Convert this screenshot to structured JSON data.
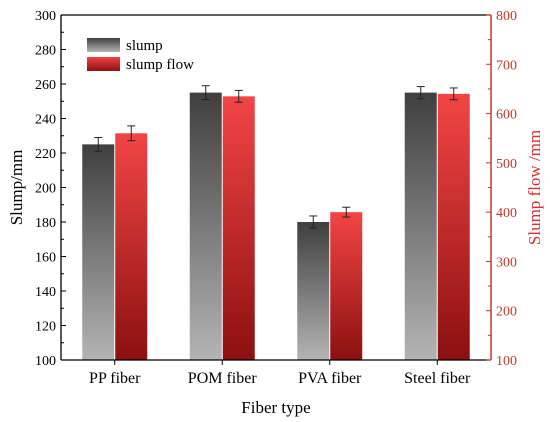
{
  "chart_data": {
    "type": "bar",
    "categories": [
      "PP fiber",
      "POM fiber",
      "PVA fiber",
      "Steel fiber"
    ],
    "xlabel": "Fiber type",
    "ylabel_left": "Slump/mm",
    "ylabel_right": "Slump flow /mm",
    "ylim_left": [
      100,
      300
    ],
    "ylim_right": [
      100,
      800
    ],
    "yticks_left": [
      100,
      120,
      140,
      160,
      180,
      200,
      220,
      240,
      260,
      280,
      300
    ],
    "yticks_right": [
      100,
      200,
      300,
      400,
      500,
      600,
      700,
      800
    ],
    "legend_position": "top-left",
    "series": [
      {
        "name": "slump",
        "axis": "left",
        "values": [
          225,
          255,
          180,
          255
        ],
        "errors": [
          4,
          4,
          3.5,
          3.5
        ]
      },
      {
        "name": "slump flow",
        "axis": "right",
        "values": [
          560,
          635,
          400,
          640
        ],
        "errors": [
          15,
          12,
          10,
          12
        ]
      }
    ],
    "colors": {
      "slump": "#555555",
      "slump_flow": "#e03a3a",
      "right_axis": "#c0392b"
    }
  }
}
